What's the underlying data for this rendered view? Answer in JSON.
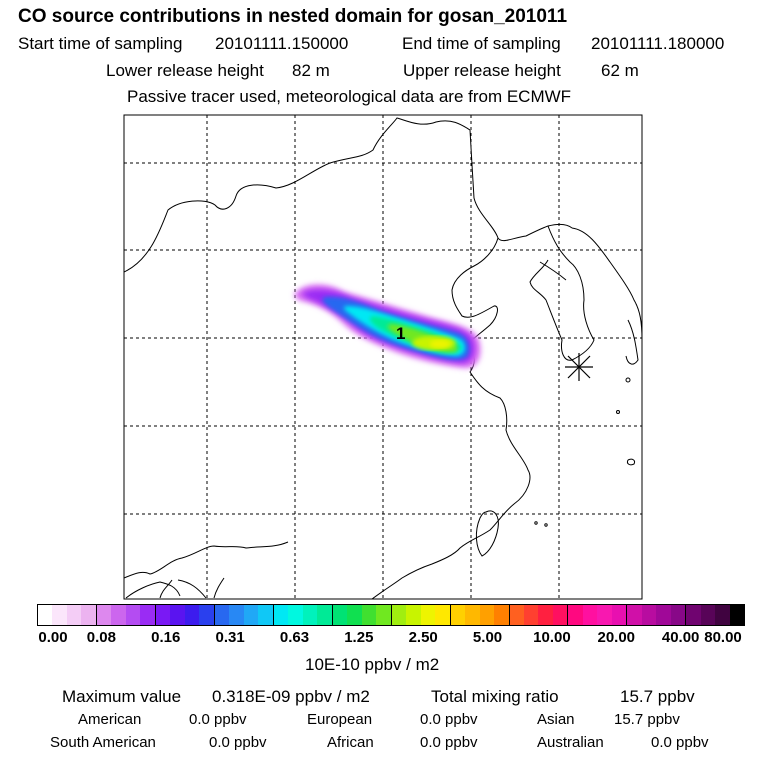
{
  "header": {
    "title": "CO  source contributions in nested domain for gosan_201011",
    "start_label": "Start time of sampling",
    "start_value": "20101111.150000",
    "end_label": "End time of sampling",
    "end_value": "20101111.180000",
    "lower_label": "Lower release height",
    "lower_value": "82 m",
    "upper_label": "Upper release height",
    "upper_value": "62 m",
    "note": "Passive tracer used, meteorological data are from ECMWF"
  },
  "map": {
    "plume_label": "1",
    "receptor_marker": "receptor-star"
  },
  "colorbar": {
    "tick_labels": [
      "0.00",
      "0.08",
      "0.16",
      "0.31",
      "0.63",
      "1.25",
      "2.50",
      "5.00",
      "10.00",
      "20.00",
      "40.00",
      "80.00"
    ],
    "unit_label": "10E-10 ppbv / m2",
    "colors": [
      "#ffffff",
      "#fbe6fb",
      "#f4cdf6",
      "#ecb3f0",
      "#dd88ee",
      "#cc66ee",
      "#b44cf2",
      "#9a2cf4",
      "#7a19f4",
      "#5a14f0",
      "#3c1cee",
      "#2a40ee",
      "#2868f0",
      "#2888f4",
      "#20a8f6",
      "#10c8f6",
      "#00e8f4",
      "#00f8e0",
      "#00f2bc",
      "#00ea96",
      "#00e274",
      "#10e050",
      "#40e030",
      "#70e820",
      "#a0ee10",
      "#c8f400",
      "#eef400",
      "#ffe800",
      "#ffd000",
      "#ffb800",
      "#ffa000",
      "#ff8000",
      "#ff6020",
      "#ff4030",
      "#ff2040",
      "#ff1060",
      "#ff0880",
      "#ff10a0",
      "#f818b0",
      "#e810b0",
      "#d010a8",
      "#b80ca0",
      "#a00898",
      "#880888",
      "#700470",
      "#580458",
      "#400340",
      "#000000"
    ]
  },
  "footer": {
    "max_label": "Maximum value",
    "max_value": "0.318E-09 ppbv / m2",
    "total_label": "Total mixing ratio",
    "total_value": "15.7 ppbv",
    "regions": [
      {
        "name": "American",
        "value": "0.0 ppbv"
      },
      {
        "name": "European",
        "value": "0.0 ppbv"
      },
      {
        "name": "Asian",
        "value": "15.7 ppbv"
      },
      {
        "name": "South American",
        "value": "0.0 ppbv"
      },
      {
        "name": "African",
        "value": "0.0 ppbv"
      },
      {
        "name": "Australian",
        "value": "0.0 ppbv"
      }
    ]
  }
}
